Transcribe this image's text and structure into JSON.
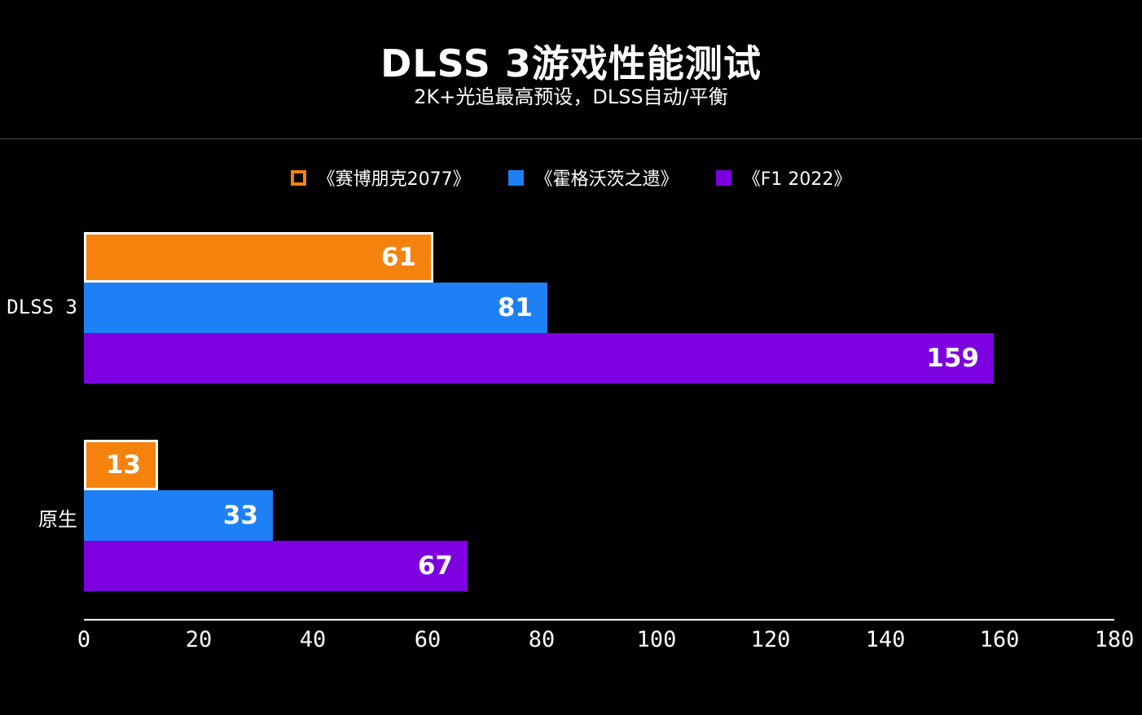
{
  "title": "DLSS 3游戏性能测试",
  "subtitle": "2K+光追最高预设，DLSS自动/平衡",
  "colors": {
    "background": "#000000",
    "text": "#ffffff",
    "divider": "#4d4d4d",
    "orange": "#f5820d",
    "blue": "#1e80f5",
    "purple": "#7d00e0"
  },
  "chart_data": {
    "type": "bar",
    "orientation": "horizontal",
    "title": "DLSS 3游戏性能测试",
    "subtitle": "2K+光追最高预设，DLSS自动/平衡",
    "categories": [
      "DLSS 3",
      "原生"
    ],
    "series": [
      {
        "name": "《赛博朋克2077》",
        "color": "#f5820d",
        "border": "#ffffff",
        "legend_marker": "hollow",
        "values": [
          61,
          13
        ]
      },
      {
        "name": "《霍格沃茨之遗》",
        "color": "#1e80f5",
        "border": "",
        "legend_marker": "solid",
        "values": [
          81,
          33
        ]
      },
      {
        "name": "《F1 2022》",
        "color": "#7d00e0",
        "border": "",
        "legend_marker": "solid",
        "values": [
          159,
          67
        ]
      }
    ],
    "xlim": [
      0,
      180
    ],
    "xticks": [
      0,
      20,
      40,
      60,
      80,
      100,
      120,
      140,
      160,
      180
    ],
    "legend_position": "top",
    "grid": false
  }
}
